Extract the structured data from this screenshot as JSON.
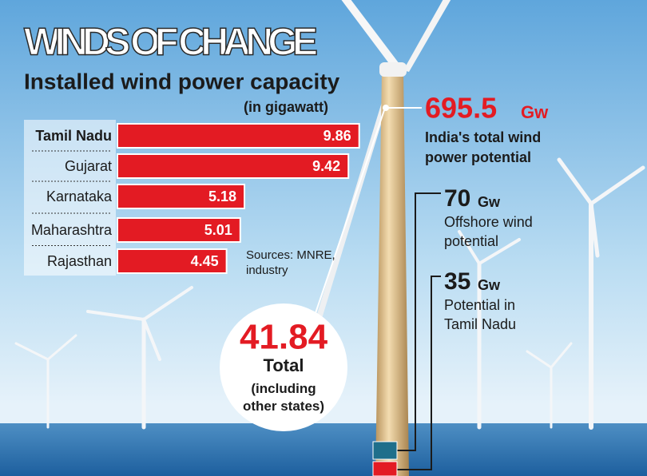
{
  "chart_data": {
    "type": "bar",
    "title": "WINDS OF CHANGE",
    "subtitle": "Installed wind power capacity",
    "unit_label": "(in gigawatt)",
    "categories": [
      "Tamil Nadu",
      "Gujarat",
      "Karnataka",
      "Maharashtra",
      "Rajasthan"
    ],
    "values": [
      9.86,
      9.42,
      5.18,
      5.01,
      4.45
    ],
    "color": "#e31b23",
    "source": "Sources: MNRE, industry",
    "total": {
      "value": 41.84,
      "label": "Total",
      "note": "(including other states)"
    },
    "potentials": [
      {
        "value": 695.5,
        "unit": "Gw",
        "label": "India's total wind power potential"
      },
      {
        "value": 70,
        "unit": "Gw",
        "label": "Offshore wind potential"
      },
      {
        "value": 35,
        "unit": "Gw",
        "label": "Potential in Tamil Nadu"
      }
    ]
  }
}
